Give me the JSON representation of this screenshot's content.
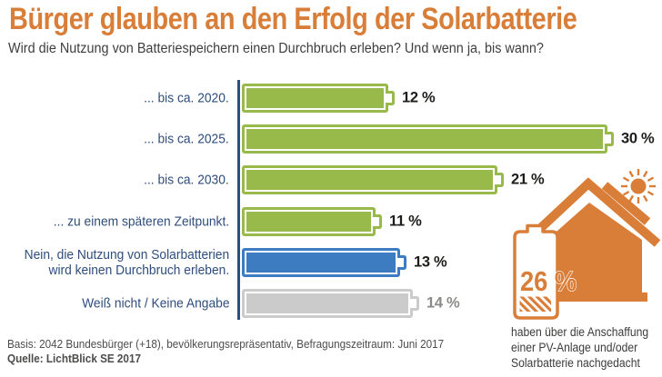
{
  "header": {
    "title": "Bürger glauben an den Erfolg der Solarbatterie",
    "subtitle": "Wird die Nutzung von Batteriespeichern einen Durchbruch erleben? Und wenn ja, bis wann?"
  },
  "chart_data": {
    "type": "bar",
    "orientation": "horizontal",
    "unit": "%",
    "categories": [
      "... bis ca. 2020.",
      "... bis ca. 2025.",
      "... bis ca. 2030.",
      "... zu einem späteren Zeitpunkt.",
      "Nein, die Nutzung von Solarbatterien\nwird keinen Durchbruch erleben.",
      "Weiß nicht / Keine Angabe"
    ],
    "values": [
      12,
      30,
      21,
      11,
      13,
      14
    ],
    "value_labels": [
      "12 %",
      "30 %",
      "21 %",
      "11 %",
      "13 %",
      "14 %"
    ],
    "bar_colors": [
      "#97ba4b",
      "#97ba4b",
      "#97ba4b",
      "#97ba4b",
      "#3e7cc1",
      "#cbcbcb"
    ],
    "value_label_colors": [
      "#1d1d1b",
      "#1d1d1b",
      "#1d1d1b",
      "#1d1d1b",
      "#1d1d1b",
      "#8a8a88"
    ],
    "xlim": [
      0,
      31
    ],
    "grid": false,
    "legend": false,
    "bar_style": "battery-shaped bars with cap nub",
    "axis_color": "#2e4d7c"
  },
  "side_infographic": {
    "percent": "26 %",
    "caption_lines": [
      "haben über die Anschaffung",
      "einer PV-Anlage und/oder",
      "Solarbatterie nachgedacht"
    ],
    "icons": [
      "house-icon",
      "sun-icon",
      "solar-panel-icon",
      "battery-icon"
    ]
  },
  "footer": {
    "basis": "Basis: 2042 Bundesbürger (+18), bevölkerungsrepräsentativ, Befragungszeitraum: Juni 2017",
    "source": "Quelle: LichtBlick SE 2017"
  },
  "colors": {
    "accent_orange": "#d97e38",
    "bar_green": "#97ba4b",
    "bar_blue": "#3e7cc1",
    "bar_gray": "#cbcbcb",
    "label_navy": "#2e4d7c"
  }
}
